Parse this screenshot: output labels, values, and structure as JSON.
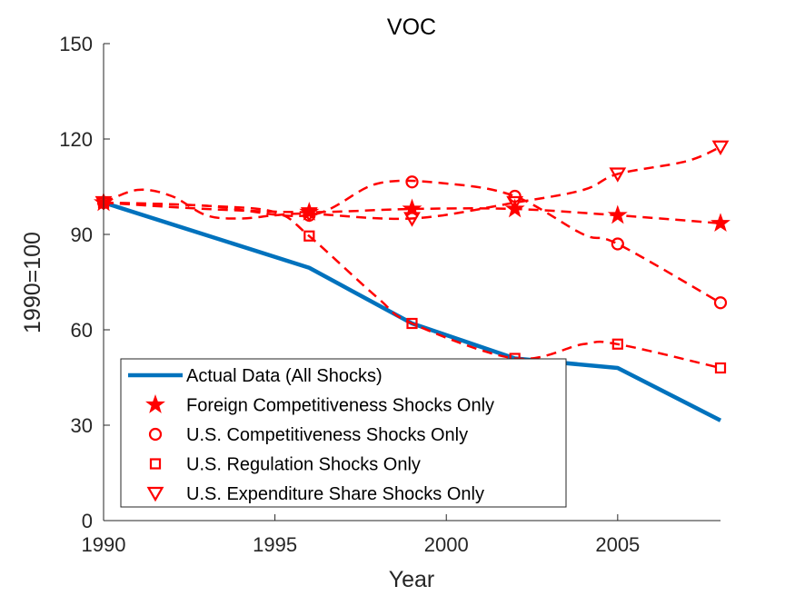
{
  "chart_data": {
    "type": "line",
    "title": "VOC",
    "xlabel": "Year",
    "ylabel": "1990=100",
    "xlim": [
      1990,
      2008
    ],
    "ylim": [
      0,
      150
    ],
    "xticks": [
      1990,
      1995,
      2000,
      2005
    ],
    "yticks": [
      0,
      30,
      60,
      90,
      120,
      150
    ],
    "grid": false,
    "legend_position": "bottom-left",
    "colors": {
      "actual": "#0072BD",
      "counterfactual": "#FF0000",
      "axis": "#262626"
    },
    "series": [
      {
        "name": "Actual Data (All Shocks)",
        "style": "solid",
        "marker": "none",
        "x": [
          1990,
          1996,
          1999,
          2002,
          2005,
          2008
        ],
        "y": [
          100,
          79.5,
          62,
          51,
          48,
          31.5
        ]
      },
      {
        "name": "Foreign Competitiveness Shocks Only",
        "style": "dashed",
        "marker": "star",
        "x": [
          1990,
          1993,
          1996,
          1999,
          2002,
          2005,
          2008
        ],
        "y": [
          100,
          98,
          97,
          98,
          98,
          96,
          93.5
        ],
        "marker_x": [
          1990,
          1996,
          1999,
          2002,
          2005,
          2008
        ],
        "marker_y": [
          100,
          97,
          98,
          98,
          96,
          93.5
        ]
      },
      {
        "name": "U.S. Competitiveness Shocks Only",
        "style": "dashed",
        "marker": "circle",
        "x": [
          1990,
          1993,
          1996,
          1998,
          2000,
          2002,
          2004,
          2005,
          2008
        ],
        "y": [
          100,
          99,
          96,
          106,
          106,
          102,
          90,
          87,
          68.5
        ],
        "marker_x": [
          1990,
          1996,
          1999,
          2002,
          2005,
          2008
        ],
        "marker_y": [
          100,
          96,
          106.5,
          102,
          87,
          68.5
        ]
      },
      {
        "name": "U.S. Regulation Shocks Only",
        "style": "dashed",
        "marker": "square",
        "x": [
          1990,
          1993,
          1995,
          1996,
          1998,
          1999,
          2002,
          2004,
          2005,
          2008
        ],
        "y": [
          100,
          99,
          97,
          89.5,
          70,
          62,
          51,
          55.5,
          55.5,
          48
        ],
        "marker_x": [
          1990,
          1996,
          1999,
          2002,
          2005,
          2008
        ],
        "marker_y": [
          100,
          89.5,
          62,
          51,
          55.5,
          48
        ]
      },
      {
        "name": "U.S. Expenditure Share Shocks Only",
        "style": "dashed",
        "marker": "triangle-down",
        "x": [
          1990,
          1991,
          1992,
          1993,
          1994,
          1995,
          1996,
          1999,
          2002,
          2004,
          2005,
          2007,
          2008
        ],
        "y": [
          100,
          104,
          102,
          96,
          95,
          96,
          96.5,
          95,
          100,
          104,
          109,
          113,
          117.5
        ],
        "marker_x": [
          1990,
          1996,
          1999,
          2002,
          2005,
          2008
        ],
        "marker_y": [
          100,
          96.5,
          95,
          100,
          109,
          117.5
        ]
      }
    ]
  }
}
